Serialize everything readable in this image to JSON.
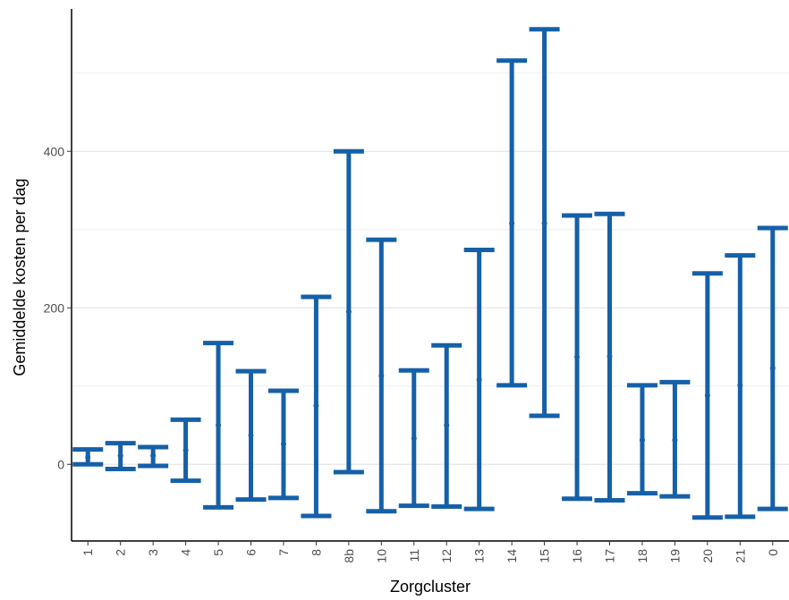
{
  "chart_data": {
    "type": "errorbar",
    "xlabel": "Zorgcluster",
    "ylabel": "Gemiddelde kosten per dag",
    "categories": [
      "1",
      "2",
      "3",
      "4",
      "5",
      "6",
      "7",
      "8",
      "8b",
      "10",
      "11",
      "12",
      "13",
      "14",
      "15",
      "16",
      "17",
      "18",
      "19",
      "20",
      "21",
      "0"
    ],
    "mean": [
      9,
      11,
      11,
      18,
      50,
      37,
      26,
      75,
      195,
      113,
      33,
      50,
      108,
      308,
      308,
      137,
      138,
      31,
      31,
      88,
      101,
      123
    ],
    "lower": [
      0,
      -6,
      -2,
      -21,
      -55,
      -45,
      -43,
      -66,
      -10,
      -60,
      -53,
      -54,
      -57,
      101,
      62,
      -44,
      -46,
      -37,
      -41,
      -68,
      -67,
      -57
    ],
    "upper": [
      19,
      27,
      22,
      57,
      155,
      119,
      94,
      214,
      400,
      287,
      120,
      152,
      274,
      516,
      556,
      318,
      320,
      101,
      105,
      244,
      267,
      302
    ],
    "ylim": [
      -98,
      582
    ],
    "yticks": [
      0,
      200,
      400
    ],
    "minor_yticks": [
      100,
      300,
      500
    ],
    "grid": true,
    "colors": {
      "bar": "#1560A8",
      "grid_major": "#e6e6e6",
      "grid_minor": "#f0f0f0",
      "axis": "#000000"
    }
  }
}
